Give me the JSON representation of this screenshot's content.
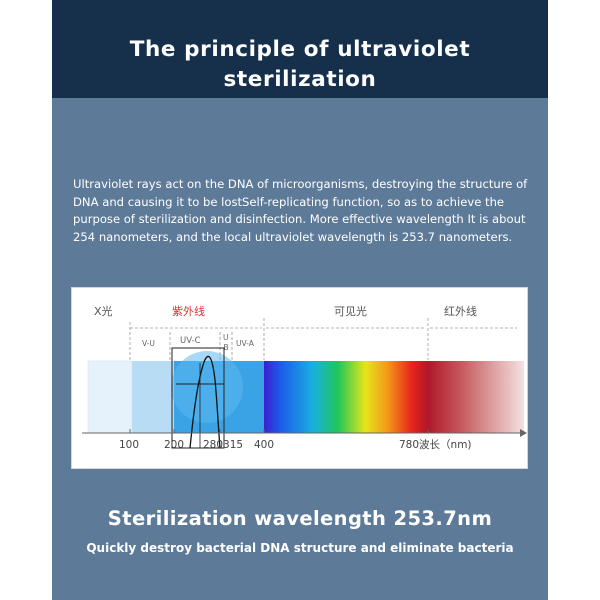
{
  "title": "The principle of ultraviolet sterilization",
  "intro": "Ultraviolet rays act on the DNA of microorganisms, destroying the structure of DNA and causing it to be lostSelf-replicating function, so as to achieve the purpose of sterilization and disinfection. More effective wavelength It is about 254 nanometers, and the local ultraviolet wavelength is 253.7 nanometers.",
  "figure": {
    "bands": {
      "xray": "X光",
      "uv": "紫外线",
      "visible": "可见光",
      "ir": "红外线"
    },
    "sub_bands": {
      "uv_v": "V-U",
      "uv_c": "UV-C",
      "uv_b_top": "U",
      "uv_b_bottom": "-B",
      "uv_a": "UV-A"
    },
    "ticks": {
      "t100": "100",
      "t200": "200",
      "t280315": "280315",
      "t400": "400",
      "axis_label": "780波长（nm)"
    },
    "colors": {
      "uv_label": "#d9343a",
      "uv_band": "#39a3e6"
    }
  },
  "headline": "Sterilization wavelength 253.7nm",
  "subline": "Quickly destroy bacterial DNA structure and eliminate bacteria"
}
